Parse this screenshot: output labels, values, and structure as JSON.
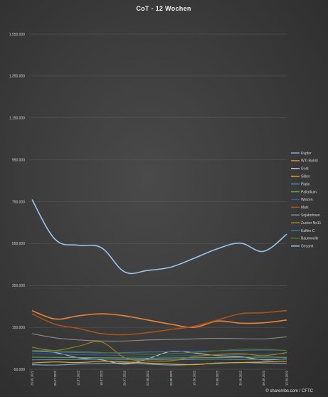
{
  "chart_data": {
    "type": "line",
    "title": "CoT - 12 Wochen",
    "source": "© sharerribs.com / CFTC",
    "x": [
      "28.06.2022",
      "05.07.2022",
      "12.07.2022",
      "19.07.2022",
      "26.07.2022",
      "02.08.2022",
      "09.08.2022",
      "16.08.2022",
      "23.08.2022",
      "30.08.2022",
      "06.09.2022",
      "13.09.2022"
    ],
    "yticks": [
      -50000,
      150000,
      350000,
      550000,
      750000,
      950000,
      1150000,
      1350000,
      1550000
    ],
    "ytick_labels": [
      "-50.000",
      "150.000",
      "350.000",
      "550.000",
      "750.000",
      "950.000",
      "1.150.000",
      "1.350.000",
      "1.550.000"
    ],
    "ylim": [
      -50000,
      1550000
    ],
    "grid": true,
    "legend_position": "right",
    "series": [
      {
        "name": "Kupfer",
        "color": "#7fa8d8",
        "values": [
          -28000,
          -30000,
          -25000,
          -22000,
          -20000,
          -25000,
          -30000,
          -27000,
          -22000,
          -18000,
          -20000,
          -22000
        ]
      },
      {
        "name": "WTI Rohöl",
        "color": "#e8823a",
        "values": [
          230000,
          190000,
          205000,
          215000,
          205000,
          185000,
          165000,
          150000,
          180000,
          170000,
          172000,
          185000
        ]
      },
      {
        "name": "Gold",
        "color": "#c4c4c4",
        "values": [
          40000,
          30000,
          5000,
          -5000,
          -25000,
          0,
          35000,
          28000,
          15000,
          10000,
          -5000,
          0
        ]
      },
      {
        "name": "Silber",
        "color": "#e0b020",
        "values": [
          -20000,
          -15000,
          -18000,
          -12000,
          -15000,
          -20000,
          -25000,
          -28000,
          -20000,
          -18000,
          -15000,
          -12000
        ]
      },
      {
        "name": "Platin",
        "color": "#5a86c8",
        "values": [
          -5000,
          -4000,
          -3000,
          -2000,
          -3000,
          -4000,
          -5000,
          -3000,
          -2000,
          -3000,
          -2500,
          -2000
        ]
      },
      {
        "name": "Palladium",
        "color": "#6aa84f",
        "values": [
          8000,
          7000,
          6000,
          5000,
          4000,
          3000,
          4000,
          5000,
          6000,
          7000,
          8000,
          7000
        ]
      },
      {
        "name": "Weizen",
        "color": "#2f5fa0",
        "values": [
          25000,
          22000,
          20000,
          18000,
          15000,
          12000,
          14000,
          16000,
          18000,
          20000,
          22000,
          24000
        ]
      },
      {
        "name": "Mais",
        "color": "#a9531c",
        "values": [
          215000,
          165000,
          145000,
          120000,
          115000,
          125000,
          140000,
          155000,
          185000,
          215000,
          220000,
          230000
        ]
      },
      {
        "name": "Sojabohnen",
        "color": "#8a8a8a",
        "values": [
          120000,
          100000,
          90000,
          85000,
          85000,
          90000,
          92000,
          95000,
          98000,
          96000,
          95000,
          105000
        ]
      },
      {
        "name": "Zucker No11",
        "color": "#a0841a",
        "values": [
          55000,
          40000,
          60000,
          80000,
          5000,
          -10000,
          -10000,
          10000,
          20000,
          25000,
          15000,
          30000
        ]
      },
      {
        "name": "Kaffee C",
        "color": "#3c6fb0",
        "values": [
          35000,
          32000,
          30000,
          28000,
          30000,
          32000,
          34000,
          36000,
          38000,
          40000,
          42000,
          40000
        ]
      },
      {
        "name": "Baumwolle",
        "color": "#4f7a2a",
        "values": [
          40000,
          38000,
          35000,
          30000,
          25000,
          22000,
          25000,
          30000,
          38000,
          45000,
          45000,
          40000
        ]
      },
      {
        "name": "Gesamt",
        "color": "#9cc3ec",
        "values": [
          760000,
          570000,
          542000,
          530000,
          415000,
          422000,
          438000,
          480000,
          525000,
          552000,
          513000,
          595000
        ]
      }
    ]
  }
}
